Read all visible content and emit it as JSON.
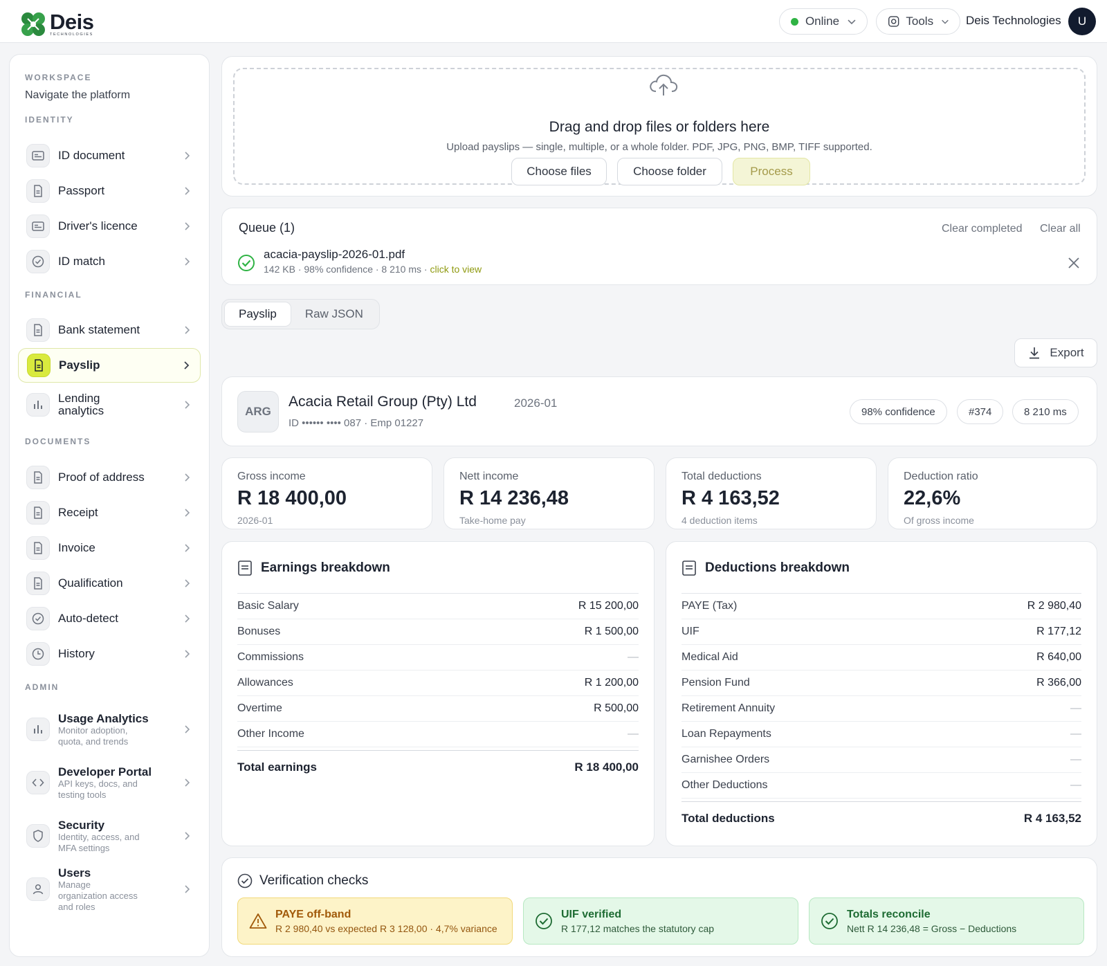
{
  "brand": {
    "name": "Deis",
    "tagline": "TECHNOLOGIES"
  },
  "header": {
    "status": "Online",
    "tools": "Tools",
    "org": "Deis Technologies",
    "avatar_initial": "U",
    "status_color": "#2fb344"
  },
  "sidebar": {
    "workspace_label": "WORKSPACE",
    "subtitle": "Navigate the platform",
    "identity_label": "IDENTITY",
    "identity": [
      {
        "label": "ID document",
        "icon": "id-card-icon"
      },
      {
        "label": "Passport",
        "icon": "document-icon"
      },
      {
        "label": "Driver's licence",
        "icon": "id-card-icon"
      },
      {
        "label": "ID match",
        "icon": "check-circle-icon"
      }
    ],
    "financial_label": "FINANCIAL",
    "financial": [
      {
        "label": "Bank statement",
        "icon": "document-icon"
      },
      {
        "label": "Payslip",
        "icon": "document-icon",
        "active": true
      },
      {
        "label": "Lending analytics",
        "icon": "bar-chart-icon"
      }
    ],
    "documents_label": "DOCUMENTS",
    "documents": [
      {
        "label": "Proof of address",
        "icon": "document-icon"
      },
      {
        "label": "Receipt",
        "icon": "document-icon"
      },
      {
        "label": "Invoice",
        "icon": "document-icon"
      },
      {
        "label": "Qualification",
        "icon": "document-icon"
      },
      {
        "label": "Auto-detect",
        "icon": "check-circle-icon"
      },
      {
        "label": "History",
        "icon": "clock-icon"
      }
    ],
    "admin_label": "ADMIN",
    "admin": [
      {
        "title": "Usage Analytics",
        "desc": "Monitor adoption, quota, and trends",
        "icon": "bar-chart-icon"
      },
      {
        "title": "Developer Portal",
        "desc": "API keys, docs, and testing tools",
        "icon": "code-icon"
      },
      {
        "title": "Security",
        "desc": "Identity, access, and MFA settings",
        "icon": "shield-icon"
      },
      {
        "title": "Users",
        "desc": "Manage organization access and roles",
        "icon": "user-icon"
      }
    ]
  },
  "upload": {
    "title": "Drag and drop files or folders here",
    "subtitle": "Upload payslips — single, multiple, or a whole folder. PDF, JPG, PNG, BMP, TIFF supported.",
    "choose_files": "Choose files",
    "choose_folder": "Choose folder",
    "process": "Process"
  },
  "queue": {
    "title": "Queue (1)",
    "clear_completed": "Clear completed",
    "clear_all": "Clear all",
    "file": {
      "name": "acacia-payslip-2026-01.pdf",
      "meta": "142 KB · 98% confidence · 8 210 ms · ",
      "view": "click to view"
    }
  },
  "tabs": [
    "Payslip",
    "Raw JSON"
  ],
  "export": "Export",
  "employer": {
    "initials": "ARG",
    "name": "Acacia Retail Group (Pty) Ltd",
    "period": "2026-01",
    "id_line": "ID •••••• •••• 087 · Emp 01227",
    "chips": [
      "98% confidence",
      "#374",
      "8 210 ms"
    ]
  },
  "stats": [
    {
      "label": "Gross income",
      "value": "R 18 400,00",
      "sub": "2026-01"
    },
    {
      "label": "Nett income",
      "value": "R 14 236,48",
      "sub": "Take-home pay"
    },
    {
      "label": "Total deductions",
      "value": "R 4 163,52",
      "sub": "4 deduction items"
    },
    {
      "label": "Deduction ratio",
      "value": "22,6%",
      "sub": "Of gross income"
    }
  ],
  "earnings": {
    "title": "Earnings breakdown",
    "rows": [
      {
        "label": "Basic Salary",
        "value": "R 15 200,00"
      },
      {
        "label": "Bonuses",
        "value": "R 1 500,00"
      },
      {
        "label": "Commissions",
        "value": "—"
      },
      {
        "label": "Allowances",
        "value": "R 1 200,00"
      },
      {
        "label": "Overtime",
        "value": "R 500,00"
      },
      {
        "label": "Other Income",
        "value": "—"
      }
    ],
    "total_label": "Total earnings",
    "total_value": "R 18 400,00"
  },
  "deductions": {
    "title": "Deductions breakdown",
    "rows": [
      {
        "label": "PAYE (Tax)",
        "value": "R 2 980,40"
      },
      {
        "label": "UIF",
        "value": "R 177,12"
      },
      {
        "label": "Medical Aid",
        "value": "R 640,00"
      },
      {
        "label": "Pension Fund",
        "value": "R 366,00"
      },
      {
        "label": "Retirement Annuity",
        "value": "—"
      },
      {
        "label": "Loan Repayments",
        "value": "—"
      },
      {
        "label": "Garnishee Orders",
        "value": "—"
      },
      {
        "label": "Other Deductions",
        "value": "—"
      }
    ],
    "total_label": "Total deductions",
    "total_value": "R 4 163,52"
  },
  "verification": {
    "title": "Verification checks",
    "checks": [
      {
        "type": "warn",
        "title": "PAYE off-band",
        "desc": "R 2 980,40 vs expected R 3 128,00 · 4,7% variance",
        "icon": "warning-icon"
      },
      {
        "type": "ok",
        "title": "UIF verified",
        "desc": "R 177,12 matches the statutory cap",
        "icon": "check-circle-icon"
      },
      {
        "type": "ok",
        "title": "Totals reconcile",
        "desc": "Nett R 14 236,48 = Gross − Deductions",
        "icon": "check-circle-icon"
      }
    ]
  }
}
